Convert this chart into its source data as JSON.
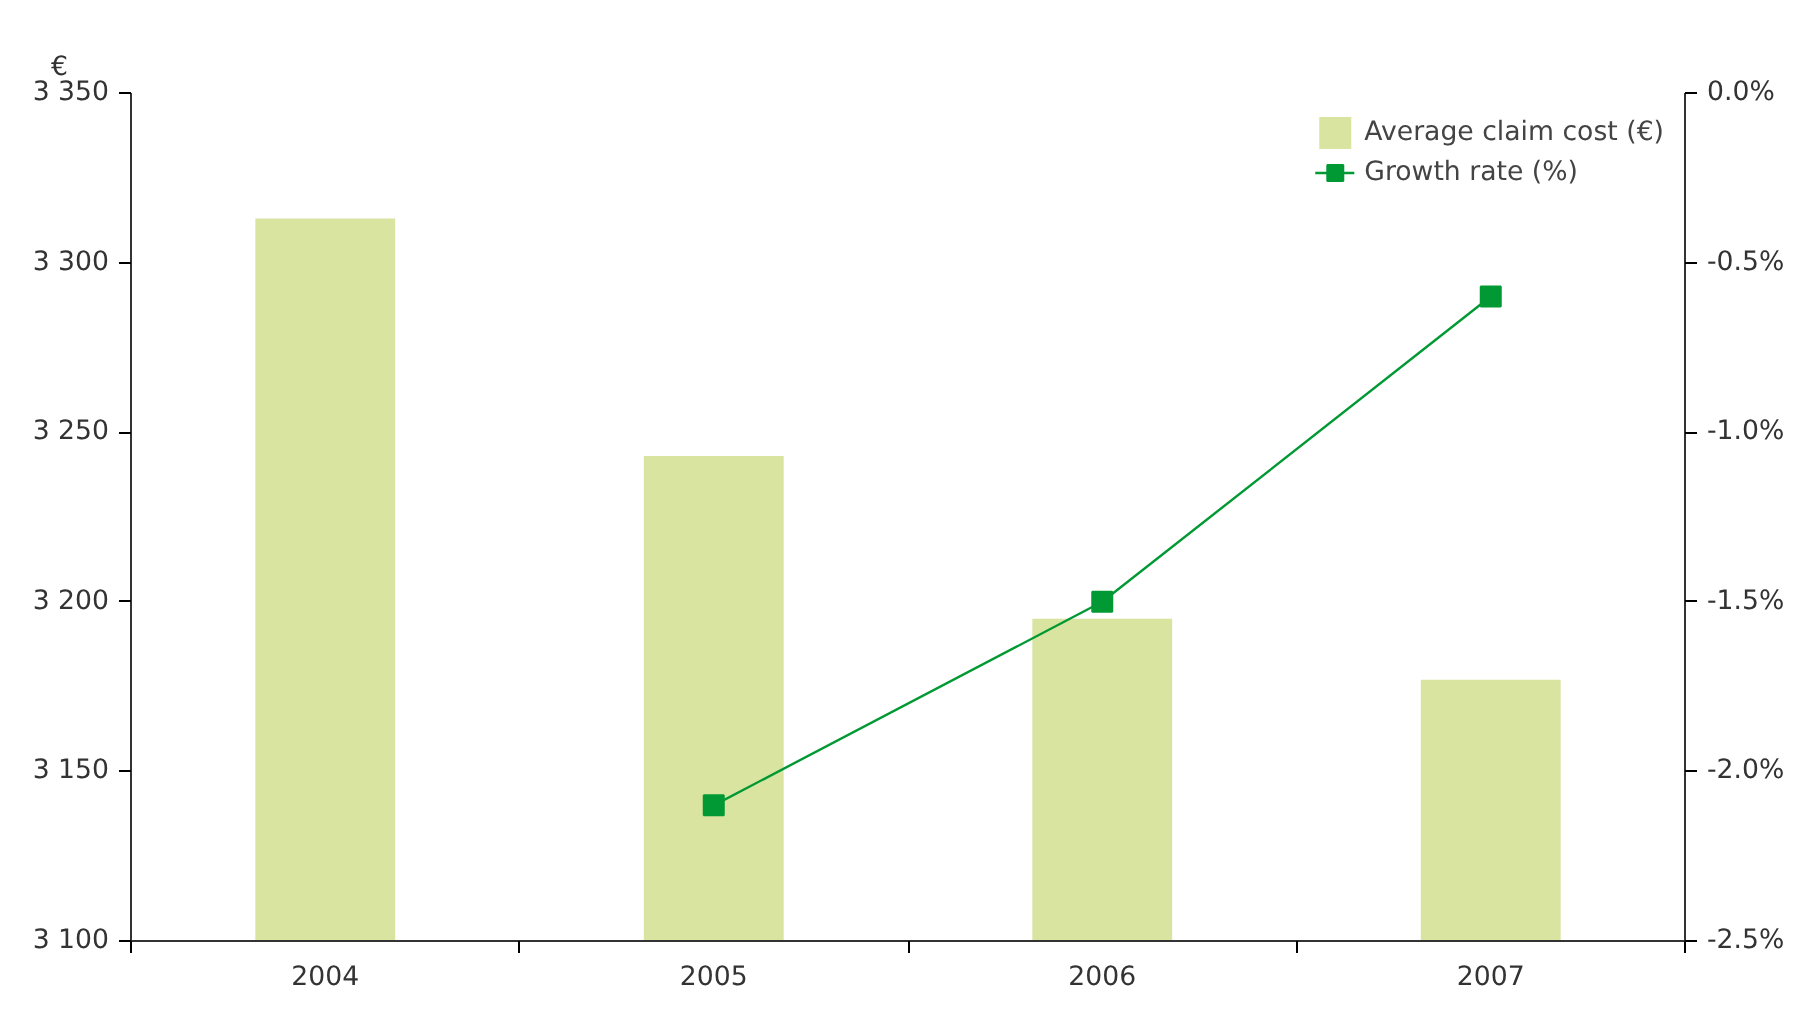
{
  "chart_data": {
    "type": "bar",
    "ylabel": "€",
    "categories": [
      "2004",
      "2005",
      "2006",
      "2007"
    ],
    "series": [
      {
        "name": "Average claim cost (€)",
        "color": "#d9e4a1",
        "values": [
          3313,
          3243,
          3195,
          3177
        ]
      },
      {
        "name": "Growth rate (%)",
        "type": "line",
        "axis": "y2",
        "color": "#009933",
        "marker": "square",
        "values": [
          null,
          -2.1,
          -1.5,
          -0.6
        ]
      }
    ],
    "ylim": [
      3100,
      3350
    ],
    "yticks": [
      {
        "value": 3100,
        "label": "3 100"
      },
      {
        "value": 3150,
        "label": "3 150"
      },
      {
        "value": 3200,
        "label": "3 200"
      },
      {
        "value": 3250,
        "label": "3 250"
      },
      {
        "value": 3300,
        "label": "3 300"
      },
      {
        "value": 3350,
        "label": "3 350"
      }
    ],
    "y2lim": [
      -2.5,
      0
    ],
    "y2ticks": [
      {
        "value": -2.5,
        "label": "-2.5%"
      },
      {
        "value": -2.0,
        "label": "-2.0%"
      },
      {
        "value": -1.5,
        "label": "-1.5%"
      },
      {
        "value": -1.0,
        "label": "-1.0%"
      },
      {
        "value": -0.5,
        "label": "-0.5%"
      },
      {
        "value": 0,
        "label": "0.0%"
      }
    ],
    "grid": false,
    "legend": "top right"
  }
}
